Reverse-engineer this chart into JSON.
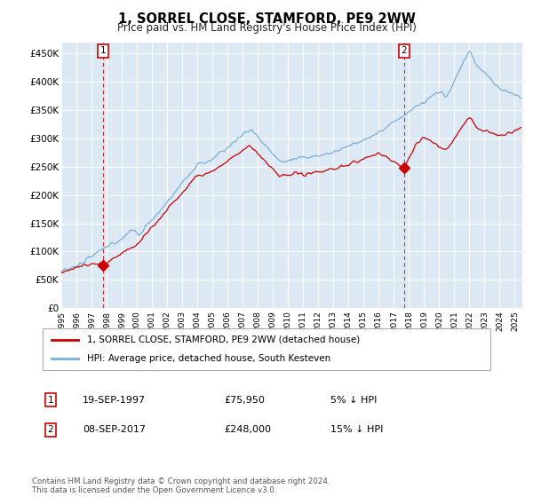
{
  "title": "1, SORREL CLOSE, STAMFORD, PE9 2WW",
  "subtitle": "Price paid vs. HM Land Registry's House Price Index (HPI)",
  "ylim": [
    0,
    470000
  ],
  "yticks": [
    0,
    50000,
    100000,
    150000,
    200000,
    250000,
    300000,
    350000,
    400000,
    450000
  ],
  "ytick_labels": [
    "£0",
    "£50K",
    "£100K",
    "£150K",
    "£200K",
    "£250K",
    "£300K",
    "£350K",
    "£400K",
    "£450K"
  ],
  "bg_color": "#dce9f5",
  "fig_bg": "#ffffff",
  "grid_color": "#ffffff",
  "legend_label_red": "1, SORREL CLOSE, STAMFORD, PE9 2WW (detached house)",
  "legend_label_blue": "HPI: Average price, detached house, South Kesteven",
  "annotation1_label": "1",
  "annotation1_date": "19-SEP-1997",
  "annotation1_price": "£75,950",
  "annotation1_note": "5% ↓ HPI",
  "annotation2_label": "2",
  "annotation2_date": "08-SEP-2017",
  "annotation2_price": "£248,000",
  "annotation2_note": "15% ↓ HPI",
  "footer": "Contains HM Land Registry data © Crown copyright and database right 2024.\nThis data is licensed under the Open Government Licence v3.0.",
  "red_color": "#cc0000",
  "blue_color": "#7aaed6",
  "ann_line_color": "#cc0000",
  "marker1_x": 1997.75,
  "marker1_y": 75950,
  "marker2_x": 2017.67,
  "marker2_y": 248000,
  "xmin": 1995.0,
  "xmax": 2025.5
}
